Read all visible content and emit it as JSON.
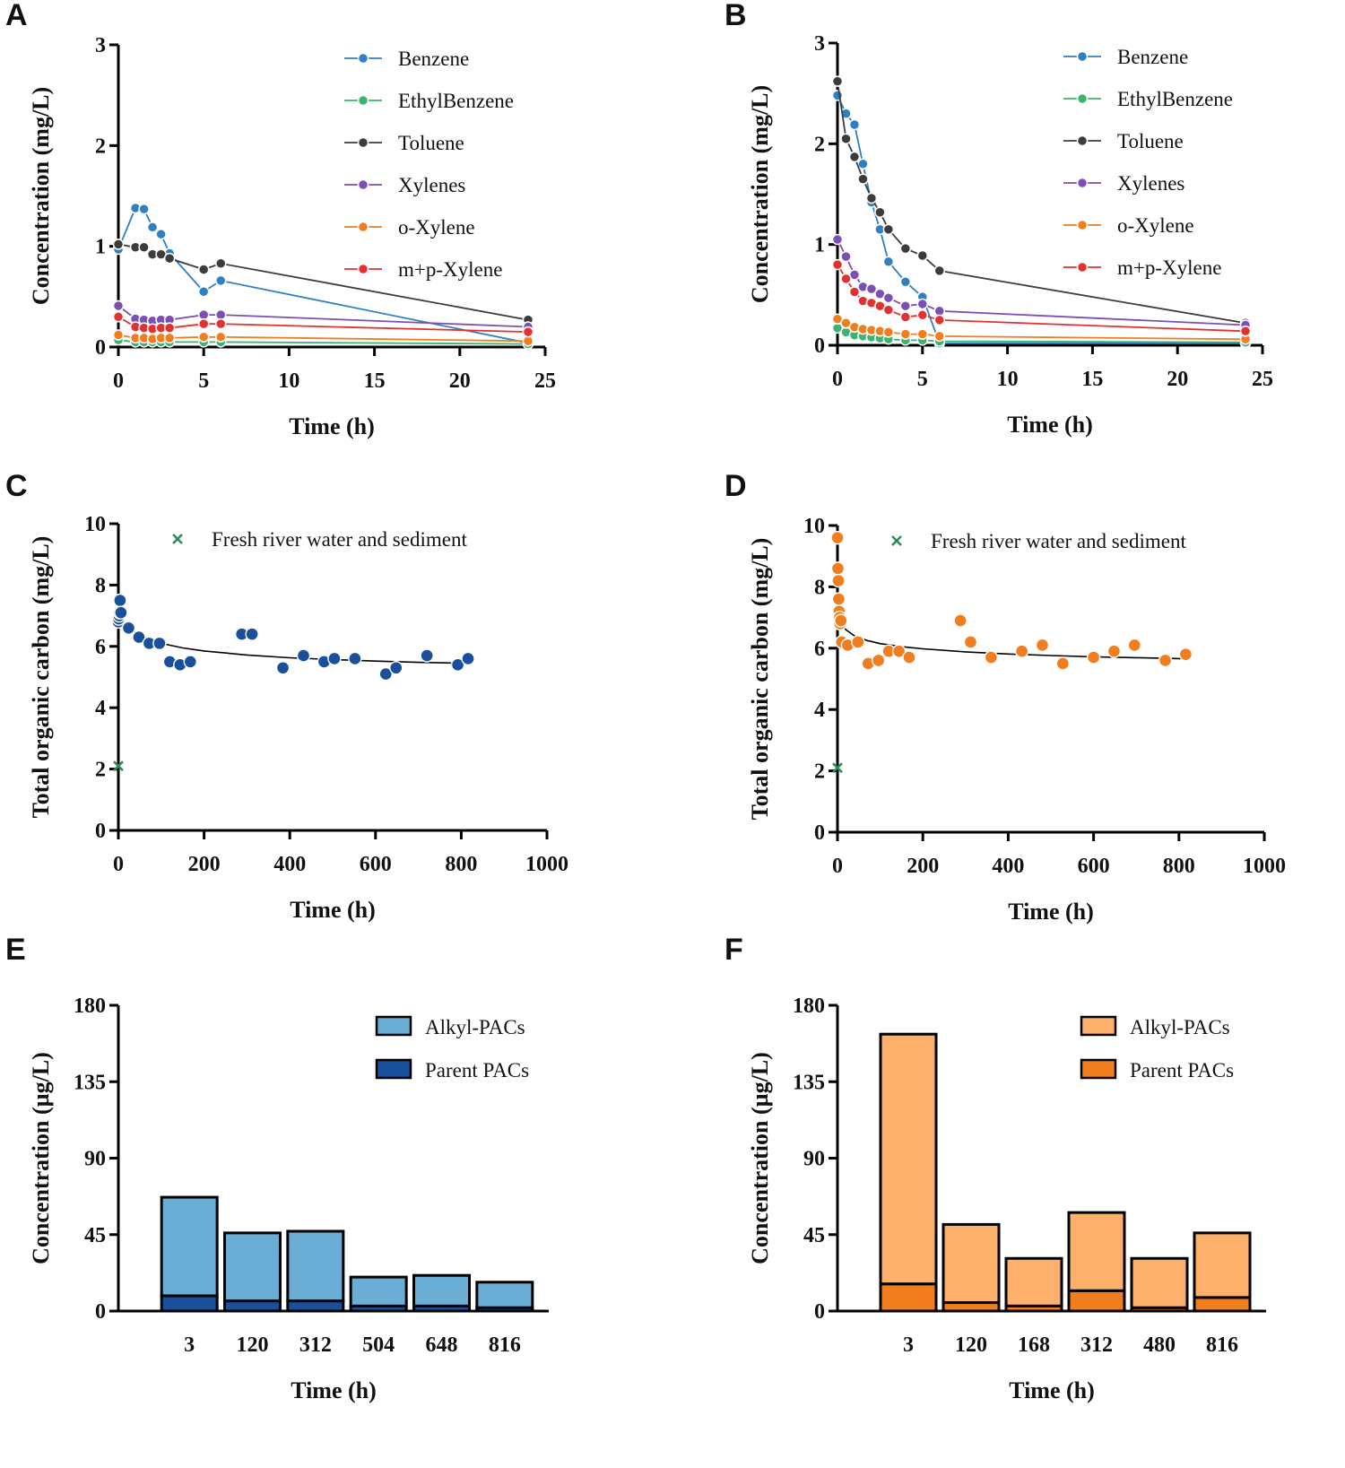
{
  "chart_data": [
    {
      "id": "A",
      "type": "line",
      "panel_label": "A",
      "xlabel": "Time (h)",
      "ylabel": "Concentration (mg/L)",
      "xlim": [
        0,
        25
      ],
      "ylim": [
        0,
        3
      ],
      "xticks": [
        0,
        5,
        10,
        15,
        20,
        25
      ],
      "yticks": [
        0,
        1,
        2,
        3
      ],
      "legend_position": "top-right",
      "series": [
        {
          "name": "Benzene",
          "color": "#2f7fc1",
          "dash": true,
          "x": [
            0,
            1,
            1.5,
            2,
            2.5,
            3,
            5,
            6,
            24
          ],
          "y": [
            0.97,
            1.38,
            1.37,
            1.19,
            1.12,
            0.93,
            0.55,
            0.66,
            0.04
          ]
        },
        {
          "name": "EthylBenzene",
          "color": "#3cb371",
          "dash": false,
          "x": [
            0,
            1,
            1.5,
            2,
            2.5,
            3,
            5,
            6,
            24
          ],
          "y": [
            0.07,
            0.05,
            0.05,
            0.05,
            0.05,
            0.05,
            0.05,
            0.05,
            0.03
          ]
        },
        {
          "name": "Toluene",
          "color": "#3c3c3c",
          "dash": false,
          "x": [
            0,
            1,
            1.5,
            2,
            2.5,
            3,
            5,
            6,
            24
          ],
          "y": [
            1.02,
            0.99,
            0.99,
            0.92,
            0.92,
            0.88,
            0.77,
            0.83,
            0.27
          ]
        },
        {
          "name": "Xylenes",
          "color": "#7b4fb5",
          "dash": false,
          "x": [
            0,
            1,
            1.5,
            2,
            2.5,
            3,
            5,
            6,
            24
          ],
          "y": [
            0.41,
            0.28,
            0.27,
            0.26,
            0.27,
            0.27,
            0.32,
            0.32,
            0.2
          ]
        },
        {
          "name": "o-Xylene",
          "color": "#f07d1e",
          "dash": false,
          "x": [
            0,
            1,
            1.5,
            2,
            2.5,
            3,
            5,
            6,
            24
          ],
          "y": [
            0.12,
            0.09,
            0.09,
            0.08,
            0.09,
            0.09,
            0.1,
            0.1,
            0.06
          ]
        },
        {
          "name": "m+p-Xylene",
          "color": "#e53030",
          "dash": false,
          "x": [
            0,
            1,
            1.5,
            2,
            2.5,
            3,
            5,
            6,
            24
          ],
          "y": [
            0.3,
            0.2,
            0.19,
            0.18,
            0.19,
            0.19,
            0.23,
            0.23,
            0.15
          ]
        }
      ]
    },
    {
      "id": "B",
      "type": "line",
      "panel_label": "B",
      "xlabel": "Time (h)",
      "ylabel": "Concentration (mg/L)",
      "xlim": [
        0,
        25
      ],
      "ylim": [
        0,
        3
      ],
      "xticks": [
        0,
        5,
        10,
        15,
        20,
        25
      ],
      "yticks": [
        0,
        1,
        2,
        3
      ],
      "legend_position": "top-right",
      "series": [
        {
          "name": "Benzene",
          "color": "#2f7fc1",
          "dash": true,
          "x": [
            0,
            0.5,
            1,
            1.5,
            2,
            2.5,
            3,
            4,
            5,
            6,
            24
          ],
          "y": [
            2.48,
            2.3,
            2.19,
            1.8,
            1.42,
            1.15,
            0.83,
            0.63,
            0.48,
            0.02,
            0.02
          ]
        },
        {
          "name": "EthylBenzene",
          "color": "#3cb371",
          "dash": false,
          "x": [
            0,
            0.5,
            1,
            1.5,
            2,
            2.5,
            3,
            4,
            5,
            6,
            24
          ],
          "y": [
            0.17,
            0.13,
            0.1,
            0.09,
            0.08,
            0.07,
            0.06,
            0.05,
            0.05,
            0.04,
            0.03
          ]
        },
        {
          "name": "Toluene",
          "color": "#3c3c3c",
          "dash": false,
          "x": [
            0,
            0.5,
            1,
            1.5,
            2,
            2.5,
            3,
            4,
            5,
            6,
            24
          ],
          "y": [
            2.62,
            2.05,
            1.87,
            1.65,
            1.46,
            1.32,
            1.15,
            0.96,
            0.89,
            0.74,
            0.22
          ]
        },
        {
          "name": "Xylenes",
          "color": "#7b4fb5",
          "dash": false,
          "x": [
            0,
            0.5,
            1,
            1.5,
            2,
            2.5,
            3,
            4,
            5,
            6,
            24
          ],
          "y": [
            1.05,
            0.88,
            0.7,
            0.58,
            0.56,
            0.51,
            0.47,
            0.39,
            0.41,
            0.34,
            0.2
          ]
        },
        {
          "name": "o-Xylene",
          "color": "#f07d1e",
          "dash": false,
          "x": [
            0,
            0.5,
            1,
            1.5,
            2,
            2.5,
            3,
            4,
            5,
            6,
            24
          ],
          "y": [
            0.26,
            0.22,
            0.18,
            0.16,
            0.15,
            0.14,
            0.13,
            0.11,
            0.11,
            0.09,
            0.06
          ]
        },
        {
          "name": "m+p-Xylene",
          "color": "#e53030",
          "dash": false,
          "x": [
            0,
            0.5,
            1,
            1.5,
            2,
            2.5,
            3,
            4,
            5,
            6,
            24
          ],
          "y": [
            0.8,
            0.66,
            0.53,
            0.44,
            0.42,
            0.39,
            0.35,
            0.28,
            0.3,
            0.25,
            0.14
          ]
        }
      ]
    },
    {
      "id": "C",
      "type": "scatter",
      "panel_label": "C",
      "xlabel": "Time (h)",
      "ylabel": "Total organic carbon (mg/L)",
      "xlim": [
        0,
        1000
      ],
      "ylim": [
        0,
        10
      ],
      "xticks": [
        0,
        200,
        400,
        600,
        800,
        1000
      ],
      "yticks": [
        0,
        2,
        4,
        6,
        8,
        10
      ],
      "legend_position": "top",
      "marker_color": "#1a4f9c",
      "points": {
        "x": [
          0,
          1,
          2,
          3,
          4,
          6,
          24,
          48,
          72,
          96,
          120,
          144,
          168,
          288,
          312,
          384,
          432,
          480,
          504,
          552,
          624,
          648,
          720,
          792,
          816
        ],
        "y": [
          6.8,
          6.9,
          7.0,
          7.1,
          7.5,
          7.1,
          6.6,
          6.3,
          6.1,
          6.1,
          5.5,
          5.4,
          5.5,
          6.4,
          6.4,
          5.3,
          5.7,
          5.5,
          5.6,
          5.6,
          5.1,
          5.3,
          5.7,
          5.4,
          5.6
        ]
      },
      "reference": {
        "name": "Fresh river water and sediment",
        "x": 0,
        "y": 2.1,
        "color": "#2e8b57"
      },
      "fit_curve": {
        "x": [
          0,
          2,
          5,
          10,
          20,
          40,
          70,
          100,
          150,
          200,
          300,
          400,
          500,
          600,
          700,
          800,
          820
        ],
        "y": [
          7.1,
          7.0,
          6.9,
          6.8,
          6.65,
          6.45,
          6.25,
          6.1,
          5.95,
          5.85,
          5.72,
          5.63,
          5.57,
          5.52,
          5.48,
          5.45,
          5.44
        ]
      }
    },
    {
      "id": "D",
      "type": "scatter",
      "panel_label": "D",
      "xlabel": "Time (h)",
      "ylabel": "Total organic carbon (mg/L)",
      "xlim": [
        0,
        1000
      ],
      "ylim": [
        0,
        10
      ],
      "xticks": [
        0,
        200,
        400,
        600,
        800,
        1000
      ],
      "yticks": [
        0,
        2,
        4,
        6,
        8,
        10
      ],
      "legend_position": "top",
      "marker_color": "#f07d1e",
      "points": {
        "x": [
          0,
          1,
          2,
          3,
          4,
          5,
          6,
          8,
          10,
          24,
          48,
          72,
          96,
          120,
          144,
          168,
          288,
          312,
          360,
          432,
          480,
          528,
          600,
          648,
          696,
          768,
          816
        ],
        "y": [
          9.6,
          8.6,
          8.2,
          7.6,
          7.2,
          7.0,
          6.8,
          6.9,
          6.2,
          6.1,
          6.2,
          5.5,
          5.6,
          5.9,
          5.9,
          5.7,
          6.9,
          6.2,
          5.7,
          5.9,
          6.1,
          5.5,
          5.7,
          5.9,
          6.1,
          5.6,
          5.8
        ]
      },
      "reference": {
        "name": "Fresh river water and sediment",
        "x": 0,
        "y": 2.1,
        "color": "#2e8b57"
      },
      "fit_curve": {
        "x": [
          0,
          2,
          5,
          10,
          20,
          40,
          70,
          100,
          150,
          200,
          300,
          400,
          500,
          600,
          700,
          800,
          820
        ],
        "y": [
          7.3,
          7.1,
          6.9,
          6.75,
          6.6,
          6.4,
          6.25,
          6.15,
          6.05,
          5.98,
          5.88,
          5.81,
          5.76,
          5.72,
          5.69,
          5.66,
          5.66
        ]
      }
    },
    {
      "id": "E",
      "type": "bar",
      "stacked": true,
      "panel_label": "E",
      "xlabel": "Time (h)",
      "ylabel": "Concentration (µg/L)",
      "ylim": [
        0,
        180
      ],
      "yticks": [
        0,
        45,
        90,
        135,
        180
      ],
      "legend_position": "top-right",
      "categories": [
        "3",
        "120",
        "312",
        "504",
        "648",
        "816"
      ],
      "series": [
        {
          "name": "Parent PACs",
          "color": "#1a4f9c",
          "values": [
            9,
            6,
            6,
            3,
            3,
            2
          ]
        },
        {
          "name": "Alkyl-PACs",
          "color": "#6aaed6",
          "values": [
            58,
            40,
            41,
            17,
            18,
            15
          ]
        }
      ],
      "legend_order": [
        "Alkyl-PACs",
        "Parent PACs"
      ]
    },
    {
      "id": "F",
      "type": "bar",
      "stacked": true,
      "panel_label": "F",
      "xlabel": "Time (h)",
      "ylabel": "Concentration (µg/L)",
      "ylim": [
        0,
        180
      ],
      "yticks": [
        0,
        45,
        90,
        135,
        180
      ],
      "legend_position": "top-right",
      "categories": [
        "3",
        "120",
        "168",
        "312",
        "480",
        "816"
      ],
      "series": [
        {
          "name": "Parent PACs",
          "color": "#f07d1e",
          "values": [
            16,
            5,
            3,
            12,
            2,
            8
          ]
        },
        {
          "name": "Alkyl-PACs",
          "color": "#fcb06b",
          "values": [
            147,
            46,
            28,
            46,
            29,
            38
          ]
        }
      ],
      "legend_order": [
        "Alkyl-PACs",
        "Parent PACs"
      ]
    }
  ]
}
